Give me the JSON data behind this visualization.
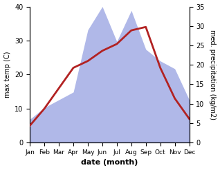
{
  "months": [
    "Jan",
    "Feb",
    "Mar",
    "Apr",
    "May",
    "Jun",
    "Jul",
    "Aug",
    "Sep",
    "Oct",
    "Nov",
    "Dec"
  ],
  "x": [
    0,
    1,
    2,
    3,
    4,
    5,
    6,
    7,
    8,
    9,
    10,
    11
  ],
  "temp": [
    5,
    10,
    16,
    22,
    24,
    27,
    29,
    33,
    34,
    22,
    13,
    7
  ],
  "precip": [
    6,
    9,
    11,
    13,
    29,
    35,
    26,
    34,
    24,
    21,
    19,
    11
  ],
  "temp_color": "#b22222",
  "precip_fill_color": "#b0b8e8",
  "temp_ylim": [
    0,
    40
  ],
  "precip_ylim": [
    0,
    35
  ],
  "temp_ylabel": "max temp (C)",
  "precip_ylabel": "med. precipitation (kg/m2)",
  "xlabel": "date (month)",
  "bg_color": "#ffffff",
  "temp_linewidth": 2.0,
  "left_yticks": [
    0,
    10,
    20,
    30,
    40
  ],
  "right_yticks": [
    0,
    5,
    10,
    15,
    20,
    25,
    30,
    35
  ],
  "ylabel_fontsize": 7,
  "xlabel_fontsize": 8,
  "tick_fontsize": 7,
  "month_fontsize": 6.5
}
